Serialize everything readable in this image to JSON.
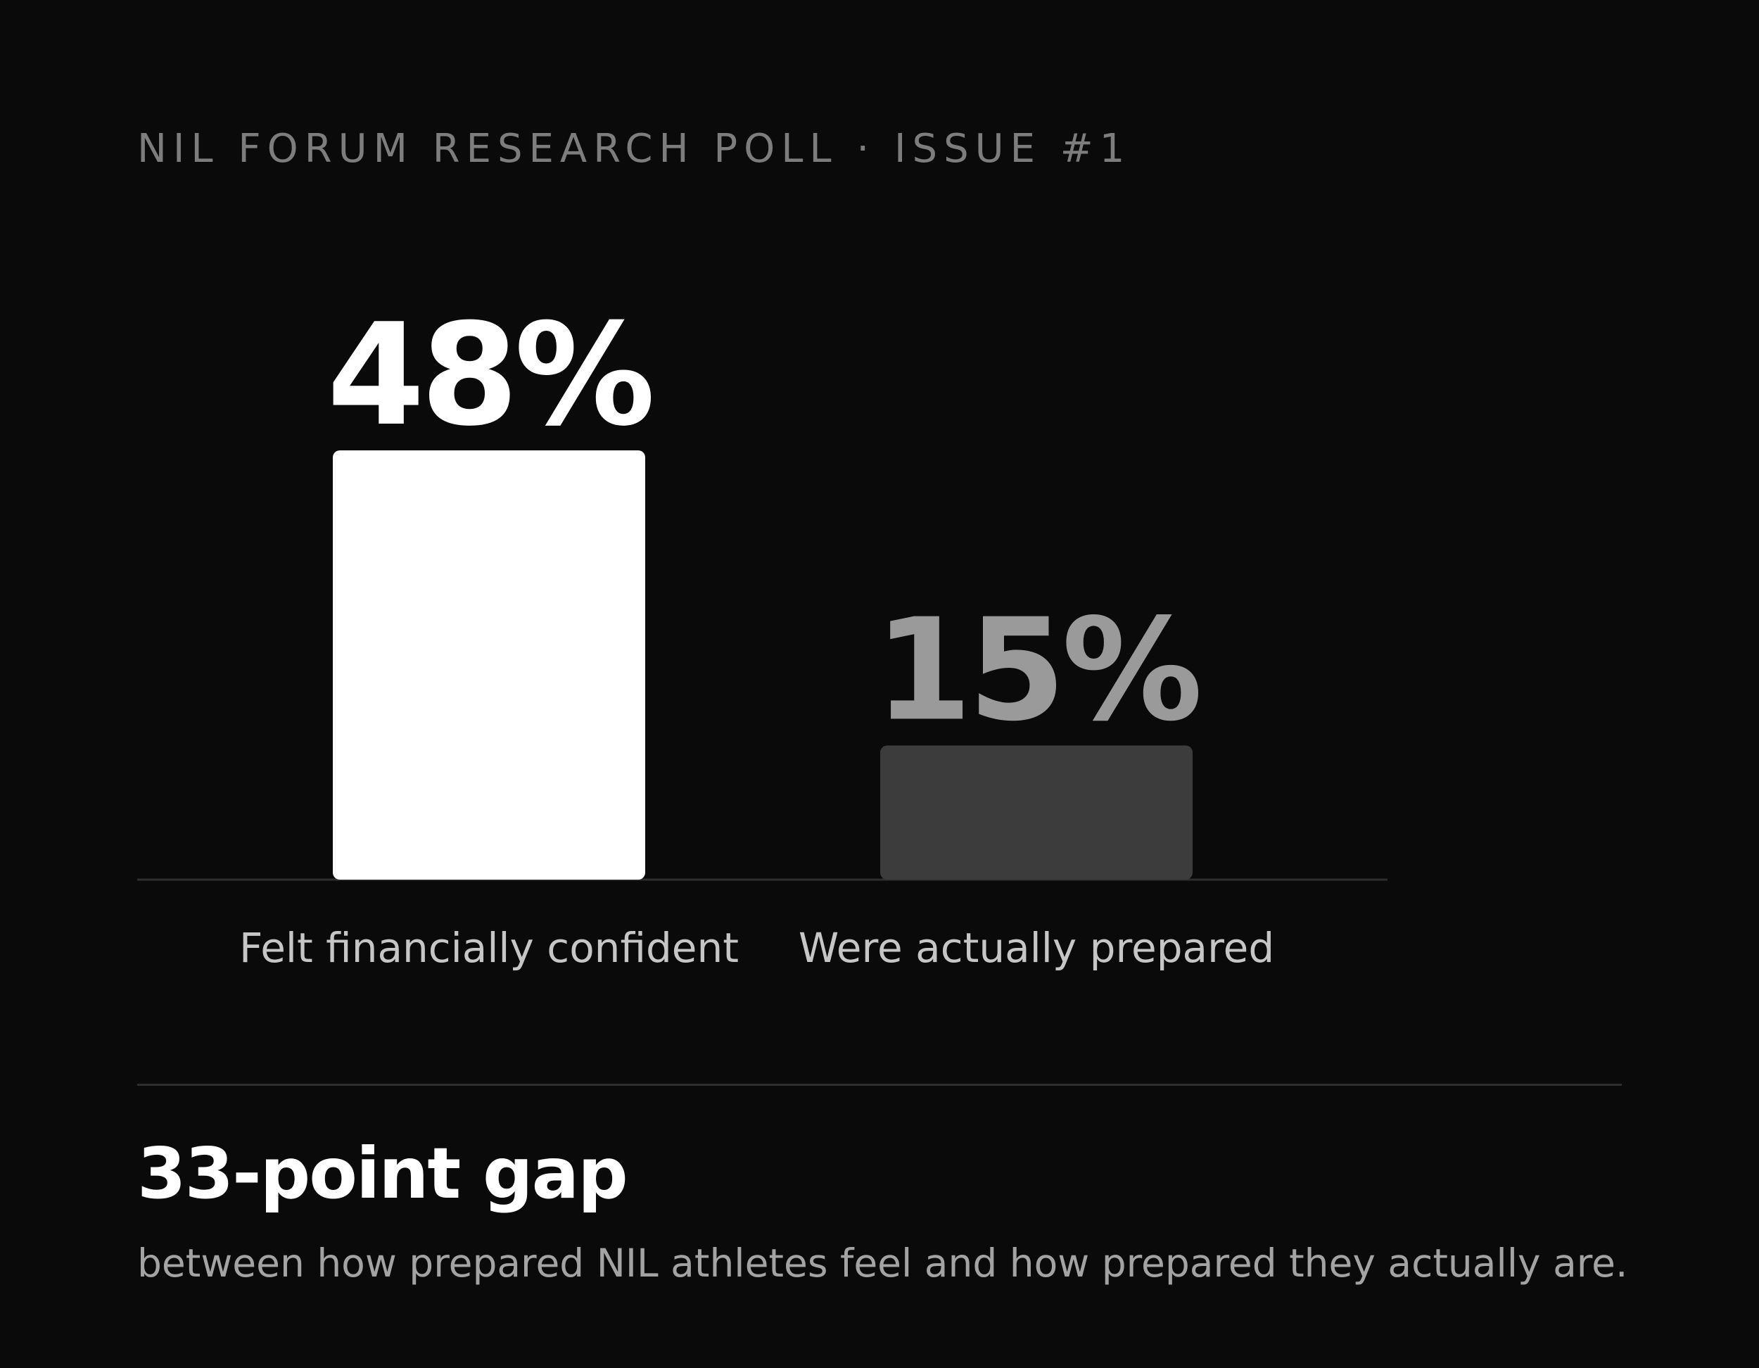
{
  "header": {
    "eyebrow": "NIL FORUM RESEARCH POLL · ISSUE #1"
  },
  "chart_data": {
    "type": "bar",
    "categories": [
      "Felt financially confident",
      "Were actually prepared"
    ],
    "values": [
      48,
      15
    ],
    "value_labels": [
      "48%",
      "15%"
    ],
    "title": "",
    "xlabel": "",
    "ylabel": "",
    "ylim": [
      0,
      48
    ],
    "grid": false,
    "bar_colors": [
      "#ffffff",
      "#3c3c3c"
    ],
    "value_label_colors": [
      "#ffffff",
      "#9a9a9a"
    ]
  },
  "summary": {
    "headline": "33-point gap",
    "subline": "between how prepared NIL athletes feel and how prepared they actually are."
  },
  "colors": {
    "background": "#0a0a0a",
    "baseline": "#2e2e2e"
  }
}
